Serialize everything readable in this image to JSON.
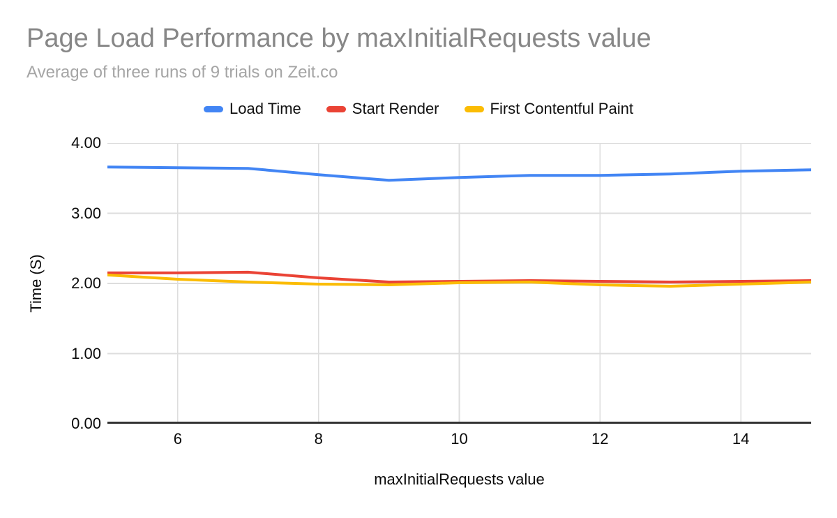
{
  "page": {
    "background": "#ffffff"
  },
  "chart_data": {
    "type": "line",
    "title": "Page Load Performance by maxInitialRequests value",
    "subtitle": "Average of three runs of 9 trials on Zeit.co",
    "xlabel": "maxInitialRequests value",
    "ylabel": "Time (S)",
    "xlim": [
      5,
      15
    ],
    "ylim": [
      0,
      4
    ],
    "x_ticks": [
      6,
      8,
      10,
      12,
      14
    ],
    "x_tick_labels": [
      "6",
      "8",
      "10",
      "12",
      "14"
    ],
    "y_ticks": [
      0,
      1,
      2,
      3,
      4
    ],
    "y_tick_labels": [
      "0.00",
      "1.00",
      "2.00",
      "3.00",
      "4.00"
    ],
    "grid": true,
    "legend_position": "top",
    "x": [
      5,
      6,
      7,
      8,
      9,
      10,
      11,
      12,
      13,
      14,
      15
    ],
    "series": [
      {
        "name": "Load Time",
        "color": "#4285F4",
        "values": [
          3.66,
          3.65,
          3.64,
          3.55,
          3.47,
          3.51,
          3.54,
          3.54,
          3.56,
          3.6,
          3.62
        ]
      },
      {
        "name": "Start Render",
        "color": "#EA4335",
        "values": [
          2.15,
          2.15,
          2.16,
          2.08,
          2.02,
          2.03,
          2.04,
          2.03,
          2.02,
          2.03,
          2.04
        ]
      },
      {
        "name": "First Contentful Paint",
        "color": "#FBBC04",
        "values": [
          2.12,
          2.06,
          2.02,
          1.99,
          1.98,
          2.01,
          2.02,
          1.98,
          1.96,
          1.99,
          2.02
        ]
      }
    ]
  },
  "styles": {
    "title_color": "#878787",
    "subtitle_color": "#A5A5A5",
    "tick_label_color": "#0A0A0A",
    "grid_color": "#DDDDDD",
    "axis_line_color": "#333333",
    "series_blue": "#4285F4",
    "series_red": "#EA4335",
    "series_yellow": "#FBBC04"
  }
}
